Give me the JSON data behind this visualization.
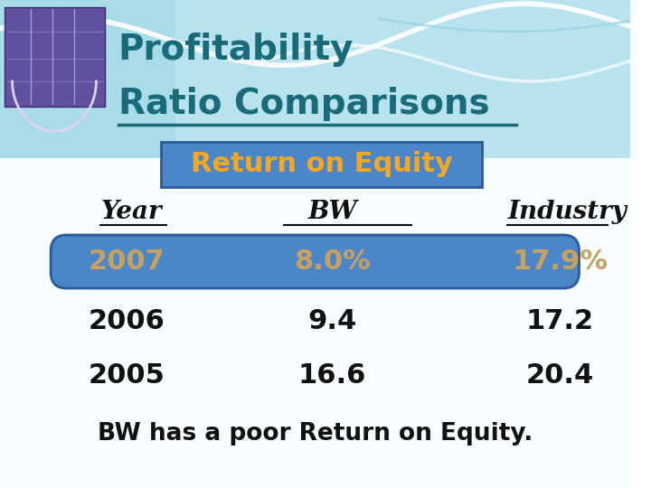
{
  "title_line1": "Profitability",
  "title_line2": "Ratio Comparisons",
  "subtitle": "Return on Equity",
  "subtitle_bg": "#4a86c8",
  "subtitle_fg": "#f5a623",
  "col_headers": [
    "Year",
    "BW",
    "Industry"
  ],
  "rows": [
    {
      "year": "2007",
      "bw": "8.0%",
      "industry": "17.9%",
      "highlight": true
    },
    {
      "year": "2006",
      "bw": "9.4",
      "industry": "17.2",
      "highlight": false
    },
    {
      "year": "2005",
      "bw": "16.6",
      "industry": "20.4",
      "highlight": false
    }
  ],
  "highlight_bg": "#4a86c8",
  "highlight_text": "#c8a060",
  "footer": "BW has a poor Return on Equity.",
  "title_color": "#1a6b7a",
  "normal_text_color": "#111111",
  "bg_top_color": "#a8dce8",
  "bg_bottom_color": "#ffffff",
  "wave1_color": "#ffffff",
  "wave2_color": "#7bbccc",
  "img_box_color1": "#7060a8",
  "img_box_color2": "#4a3880",
  "underline_color": "#1a6b7a"
}
